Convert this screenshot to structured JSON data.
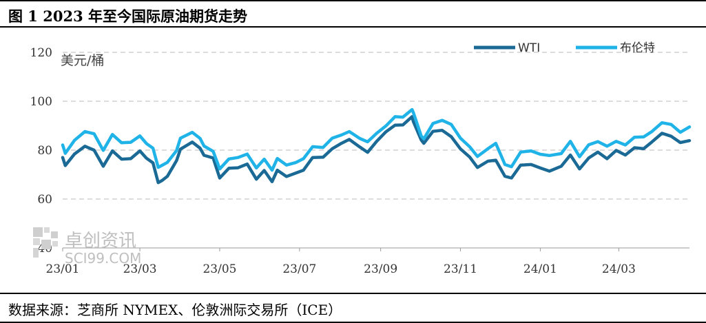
{
  "title": "图 1 2023 年至今国际原油期货走势",
  "source": "数据来源：芝商所 NYMEX、伦敦洲际交易所（ICE）",
  "watermark": {
    "cn": "卓创资讯",
    "en": "SCI99.COM"
  },
  "chart_data": {
    "type": "line",
    "ylabel": "美元/桶",
    "ylim": [
      40,
      120
    ],
    "yticks": [
      40,
      60,
      80,
      100,
      120
    ],
    "xlim": [
      "2023-01-03",
      "2024-04-26"
    ],
    "xticks": [
      {
        "date": "2023-01-03",
        "label": "23/01"
      },
      {
        "date": "2023-03-03",
        "label": "23/03"
      },
      {
        "date": "2023-05-03",
        "label": "23/05"
      },
      {
        "date": "2023-07-03",
        "label": "23/07"
      },
      {
        "date": "2023-09-03",
        "label": "23/09"
      },
      {
        "date": "2023-11-03",
        "label": "23/11"
      },
      {
        "date": "2024-01-03",
        "label": "24/01"
      },
      {
        "date": "2024-03-03",
        "label": "24/03"
      }
    ],
    "grid": true,
    "legend_position": "top-right",
    "series": [
      {
        "name": "WTI",
        "color": "#1b6a96",
        "points": [
          [
            "2023-01-03",
            77.0
          ],
          [
            "2023-01-05",
            73.7
          ],
          [
            "2023-01-12",
            78.4
          ],
          [
            "2023-01-20",
            81.6
          ],
          [
            "2023-01-27",
            80.0
          ],
          [
            "2023-02-03",
            73.4
          ],
          [
            "2023-02-10",
            79.7
          ],
          [
            "2023-02-17",
            76.3
          ],
          [
            "2023-02-24",
            76.5
          ],
          [
            "2023-03-03",
            79.7
          ],
          [
            "2023-03-08",
            76.7
          ],
          [
            "2023-03-13",
            74.8
          ],
          [
            "2023-03-17",
            66.7
          ],
          [
            "2023-03-20",
            67.6
          ],
          [
            "2023-03-24",
            69.3
          ],
          [
            "2023-03-31",
            75.7
          ],
          [
            "2023-04-03",
            80.4
          ],
          [
            "2023-04-12",
            83.3
          ],
          [
            "2023-04-18",
            80.8
          ],
          [
            "2023-04-21",
            77.9
          ],
          [
            "2023-04-28",
            76.8
          ],
          [
            "2023-05-03",
            68.6
          ],
          [
            "2023-05-10",
            72.6
          ],
          [
            "2023-05-17",
            72.8
          ],
          [
            "2023-05-24",
            74.3
          ],
          [
            "2023-05-31",
            68.1
          ],
          [
            "2023-06-06",
            71.7
          ],
          [
            "2023-06-12",
            67.1
          ],
          [
            "2023-06-16",
            71.8
          ],
          [
            "2023-06-23",
            69.2
          ],
          [
            "2023-06-30",
            70.6
          ],
          [
            "2023-07-06",
            71.8
          ],
          [
            "2023-07-13",
            77.0
          ],
          [
            "2023-07-21",
            77.1
          ],
          [
            "2023-07-28",
            80.6
          ],
          [
            "2023-08-04",
            82.8
          ],
          [
            "2023-08-10",
            84.4
          ],
          [
            "2023-08-18",
            81.3
          ],
          [
            "2023-08-24",
            79.1
          ],
          [
            "2023-08-31",
            83.6
          ],
          [
            "2023-09-07",
            87.5
          ],
          [
            "2023-09-14",
            90.2
          ],
          [
            "2023-09-20",
            90.3
          ],
          [
            "2023-09-27",
            93.7
          ],
          [
            "2023-09-28",
            91.7
          ],
          [
            "2023-10-04",
            84.2
          ],
          [
            "2023-10-06",
            82.8
          ],
          [
            "2023-10-13",
            87.7
          ],
          [
            "2023-10-20",
            88.1
          ],
          [
            "2023-10-27",
            85.5
          ],
          [
            "2023-11-03",
            80.5
          ],
          [
            "2023-11-10",
            77.2
          ],
          [
            "2023-11-16",
            72.9
          ],
          [
            "2023-11-24",
            75.5
          ],
          [
            "2023-11-30",
            75.9
          ],
          [
            "2023-12-07",
            69.3
          ],
          [
            "2023-12-12",
            68.6
          ],
          [
            "2023-12-19",
            73.9
          ],
          [
            "2023-12-27",
            74.1
          ],
          [
            "2024-01-03",
            72.7
          ],
          [
            "2024-01-10",
            71.4
          ],
          [
            "2024-01-19",
            73.4
          ],
          [
            "2024-01-26",
            78.0
          ],
          [
            "2024-02-02",
            72.3
          ],
          [
            "2024-02-09",
            76.8
          ],
          [
            "2024-02-16",
            79.2
          ],
          [
            "2024-02-23",
            76.5
          ],
          [
            "2024-03-01",
            79.9
          ],
          [
            "2024-03-08",
            78.0
          ],
          [
            "2024-03-15",
            81.0
          ],
          [
            "2024-03-22",
            80.6
          ],
          [
            "2024-03-28",
            83.2
          ],
          [
            "2024-04-05",
            86.9
          ],
          [
            "2024-04-12",
            85.7
          ],
          [
            "2024-04-19",
            83.1
          ],
          [
            "2024-04-26",
            83.9
          ]
        ]
      },
      {
        "name": "布伦特",
        "color": "#1fb3e8",
        "points": [
          [
            "2023-01-03",
            82.1
          ],
          [
            "2023-01-05",
            78.7
          ],
          [
            "2023-01-12",
            84.0
          ],
          [
            "2023-01-20",
            87.6
          ],
          [
            "2023-01-27",
            86.7
          ],
          [
            "2023-02-03",
            79.9
          ],
          [
            "2023-02-10",
            86.4
          ],
          [
            "2023-02-17",
            83.0
          ],
          [
            "2023-02-24",
            83.2
          ],
          [
            "2023-03-03",
            85.8
          ],
          [
            "2023-03-08",
            82.7
          ],
          [
            "2023-03-13",
            80.8
          ],
          [
            "2023-03-17",
            72.97
          ],
          [
            "2023-03-20",
            73.8
          ],
          [
            "2023-03-24",
            74.99
          ],
          [
            "2023-03-31",
            79.8
          ],
          [
            "2023-04-03",
            84.9
          ],
          [
            "2023-04-12",
            87.3
          ],
          [
            "2023-04-18",
            84.8
          ],
          [
            "2023-04-21",
            81.7
          ],
          [
            "2023-04-28",
            79.5
          ],
          [
            "2023-05-03",
            72.3
          ],
          [
            "2023-05-10",
            76.4
          ],
          [
            "2023-05-17",
            77.0
          ],
          [
            "2023-05-24",
            78.4
          ],
          [
            "2023-05-31",
            72.7
          ],
          [
            "2023-06-06",
            76.3
          ],
          [
            "2023-06-12",
            71.8
          ],
          [
            "2023-06-16",
            76.6
          ],
          [
            "2023-06-23",
            73.9
          ],
          [
            "2023-06-30",
            74.9
          ],
          [
            "2023-07-06",
            76.5
          ],
          [
            "2023-07-13",
            81.4
          ],
          [
            "2023-07-21",
            81.1
          ],
          [
            "2023-07-28",
            84.9
          ],
          [
            "2023-08-04",
            86.2
          ],
          [
            "2023-08-10",
            87.6
          ],
          [
            "2023-08-18",
            84.8
          ],
          [
            "2023-08-24",
            83.4
          ],
          [
            "2023-08-31",
            86.9
          ],
          [
            "2023-09-07",
            89.9
          ],
          [
            "2023-09-14",
            93.7
          ],
          [
            "2023-09-20",
            93.5
          ],
          [
            "2023-09-27",
            96.6
          ],
          [
            "2023-09-28",
            95.4
          ],
          [
            "2023-10-04",
            85.8
          ],
          [
            "2023-10-06",
            84.6
          ],
          [
            "2023-10-13",
            90.9
          ],
          [
            "2023-10-20",
            92.2
          ],
          [
            "2023-10-27",
            90.5
          ],
          [
            "2023-11-03",
            84.9
          ],
          [
            "2023-11-10",
            81.4
          ],
          [
            "2023-11-16",
            77.4
          ],
          [
            "2023-11-24",
            80.6
          ],
          [
            "2023-11-30",
            82.8
          ],
          [
            "2023-12-07",
            74.1
          ],
          [
            "2023-12-12",
            73.2
          ],
          [
            "2023-12-19",
            79.2
          ],
          [
            "2023-12-27",
            79.7
          ],
          [
            "2024-01-03",
            78.3
          ],
          [
            "2024-01-10",
            77.8
          ],
          [
            "2024-01-19",
            78.6
          ],
          [
            "2024-01-26",
            83.6
          ],
          [
            "2024-02-02",
            77.3
          ],
          [
            "2024-02-09",
            82.2
          ],
          [
            "2024-02-16",
            83.5
          ],
          [
            "2024-02-23",
            81.6
          ],
          [
            "2024-03-01",
            83.6
          ],
          [
            "2024-03-08",
            82.1
          ],
          [
            "2024-03-15",
            85.3
          ],
          [
            "2024-03-22",
            85.4
          ],
          [
            "2024-03-28",
            87.5
          ],
          [
            "2024-04-05",
            91.2
          ],
          [
            "2024-04-12",
            90.5
          ],
          [
            "2024-04-19",
            87.3
          ],
          [
            "2024-04-26",
            89.5
          ]
        ]
      }
    ]
  }
}
